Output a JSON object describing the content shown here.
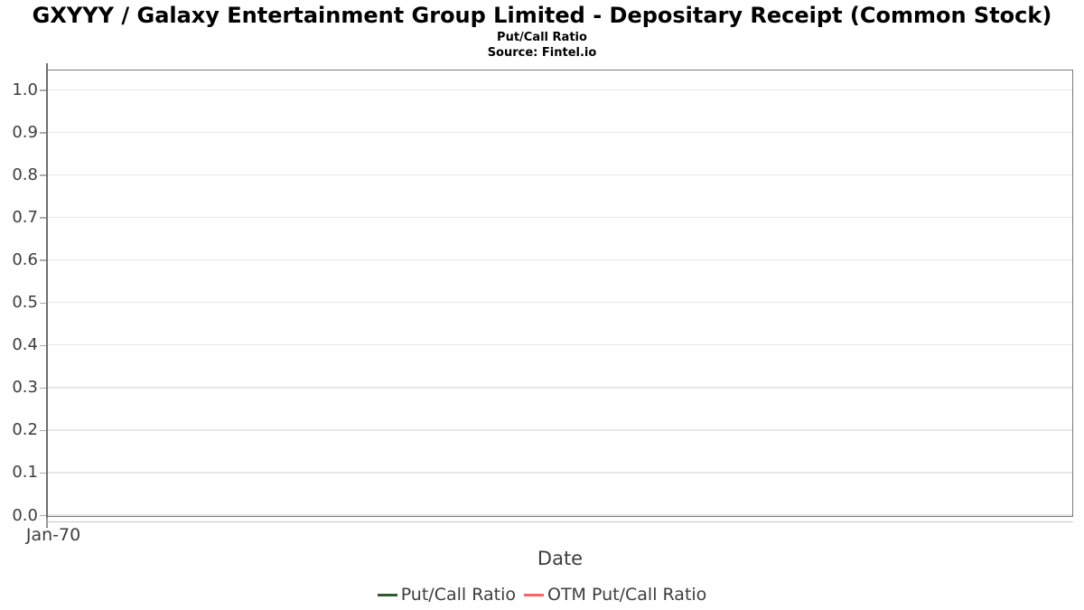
{
  "header": {
    "title": "GXYYY / Galaxy Entertainment Group Limited - Depositary Receipt (Common Stock)",
    "subtitle": "Put/Call Ratio",
    "source": "Source: Fintel.io"
  },
  "chart_data": {
    "type": "line",
    "title": "GXYYY / Galaxy Entertainment Group Limited - Depositary Receipt (Common Stock)",
    "subtitle": "Put/Call Ratio",
    "source": "Source: Fintel.io",
    "xlabel": "Date",
    "ylabel": "",
    "x_tick_labels": [
      "Jan-70"
    ],
    "y_ticks": [
      0.0,
      0.1,
      0.2,
      0.3,
      0.4,
      0.5,
      0.6,
      0.7,
      0.8,
      0.9,
      1.0
    ],
    "ylim": [
      0.0,
      1.05
    ],
    "grid": true,
    "legend_position": "bottom-center",
    "series": [
      {
        "name": "Put/Call Ratio",
        "color": "#2c5c2e",
        "x": [],
        "values": []
      },
      {
        "name": "OTM Put/Call Ratio",
        "color": "#fa6562",
        "x": [],
        "values": []
      }
    ]
  },
  "colors": {
    "series_put_call": "#2c5c2e",
    "series_otm_put_call": "#fa6562",
    "plot_border": "#7a7a7a",
    "gridline": "#e8e8e8",
    "tick_label": "#3d3d3d",
    "title_text": "#000000"
  }
}
